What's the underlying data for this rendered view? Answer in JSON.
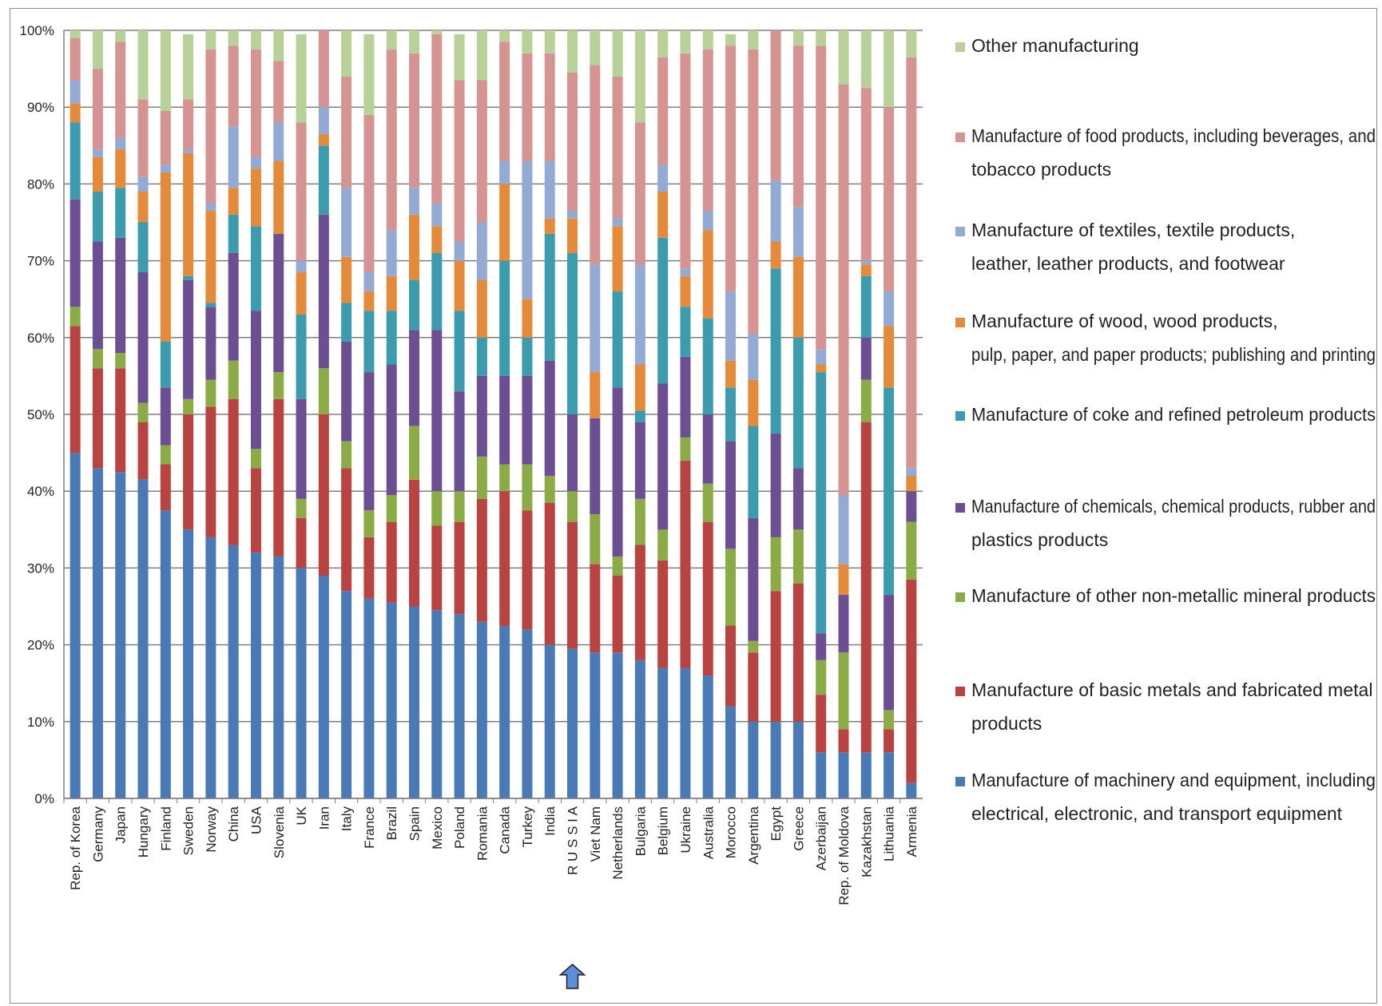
{
  "chart_data": {
    "type": "bar",
    "stacked": true,
    "percent": true,
    "title": "",
    "xlabel": "",
    "ylabel": "",
    "ylim": [
      0,
      100
    ],
    "yticks": [
      "0%",
      "10%",
      "20%",
      "30%",
      "40%",
      "50%",
      "60%",
      "70%",
      "80%",
      "90%",
      "100%"
    ],
    "grid": true,
    "legend_position": "right",
    "categories": [
      "Rep. of Korea",
      "Germany",
      "Japan",
      "Hungary",
      "Finland",
      "Sweden",
      "Norway",
      "China",
      "USA",
      "Slovenia",
      "UK",
      "Iran",
      "Italy",
      "France",
      "Brazil",
      "Spain",
      "Mexico",
      "Poland",
      "Romania",
      "Canada",
      "Turkey",
      "India",
      "R U S S I A",
      "Viet Nam",
      "Netherlands",
      "Bulgaria",
      "Belgium",
      "Ukraine",
      "Australia",
      "Morocco",
      "Argentina",
      "Egypt",
      "Greece",
      "Azerbaijan",
      "Rep. of Moldova",
      "Kazakhstan",
      "Lithuania",
      "Armenia"
    ],
    "highlight_category": "R U S S I A",
    "series": [
      {
        "name": "Manufacture of machinery and equipment, including electrical, electronic, and transport equipment",
        "color": "#4a7ab5",
        "values": [
          45,
          43,
          42.5,
          41.5,
          37.5,
          35,
          34,
          33,
          32,
          31.5,
          30,
          29,
          27,
          26,
          25.5,
          25,
          24.5,
          24,
          23,
          22.5,
          22,
          20,
          19.5,
          19,
          19,
          18,
          17,
          17,
          16,
          12,
          10,
          10,
          10,
          6,
          6,
          6,
          6,
          2
        ]
      },
      {
        "name": "Manufacture of basic metals and fabricated metal products",
        "color": "#b84340",
        "values": [
          16.5,
          13,
          13.5,
          7.5,
          6,
          15,
          17,
          19,
          11,
          20.5,
          6.5,
          21,
          16,
          8,
          10.5,
          16.5,
          11,
          12,
          16,
          17.5,
          15.5,
          18.5,
          16.5,
          11.5,
          10,
          15,
          14,
          27,
          20,
          10.5,
          9,
          17,
          18,
          7.5,
          3,
          43,
          3,
          26.5
        ]
      },
      {
        "name": "Manufacture of other non-metallic mineral products",
        "color": "#8aab46",
        "values": [
          2.5,
          2.5,
          2,
          2.5,
          2.5,
          2,
          3.5,
          5,
          2.5,
          3.5,
          2.5,
          6,
          3.5,
          3.5,
          3.5,
          7,
          4.5,
          4,
          5.5,
          3.5,
          6,
          3.5,
          4,
          6.5,
          2.5,
          6,
          4,
          3,
          5,
          10,
          1.5,
          7,
          7,
          4.5,
          10,
          5.5,
          2.5,
          7.5
        ]
      },
      {
        "name": "Manufacture of chemicals, chemical products, rubber and plastics products",
        "color": "#6c4f93",
        "values": [
          14,
          14,
          15,
          17,
          7.5,
          15.5,
          9.5,
          14,
          18,
          18,
          13,
          20,
          13,
          18,
          17,
          12.5,
          21,
          13,
          10.5,
          11.5,
          11.5,
          15,
          10,
          12.5,
          22,
          10,
          19,
          10.5,
          9,
          14,
          16,
          13.5,
          8,
          3.5,
          7.5,
          5.5,
          15,
          4
        ]
      },
      {
        "name": "Manufacture of coke and refined petroleum products",
        "color": "#3d9bae",
        "values": [
          10,
          6.5,
          6.5,
          6.5,
          6,
          0.5,
          0.5,
          5,
          11,
          0,
          11,
          9,
          5,
          8,
          7,
          6.5,
          10,
          10.5,
          5,
          15,
          5,
          16.5,
          21,
          0,
          12.5,
          1.5,
          19,
          6.5,
          12.5,
          7,
          12,
          21.5,
          17,
          34,
          0,
          8,
          27,
          0
        ]
      },
      {
        "name": "Manufacture of wood, wood products, pulp, paper, and paper products; publishing and printing",
        "color": "#e58a3a",
        "values": [
          2.5,
          4.5,
          5,
          4,
          22,
          16,
          12,
          3.5,
          7.5,
          9.5,
          5.5,
          1.5,
          6,
          2.5,
          4.5,
          8.5,
          3.5,
          6.5,
          7.5,
          10,
          5,
          2,
          4.5,
          6,
          8.5,
          6,
          6,
          4,
          11.5,
          3.5,
          6,
          3.5,
          10.5,
          1,
          4,
          1.5,
          8,
          2
        ]
      },
      {
        "name": "Manufacture of textiles, textile products, leather, leather products, and footwear",
        "color": "#93aad4",
        "values": [
          3,
          1,
          1.5,
          2,
          1,
          0.5,
          1,
          8,
          1.5,
          5,
          1.5,
          3.5,
          9,
          2.5,
          6,
          3.5,
          3,
          2.5,
          7.5,
          3,
          18,
          7.5,
          1,
          14,
          1,
          13,
          3.5,
          1,
          2.5,
          9,
          6,
          8,
          6.5,
          2,
          9,
          0.5,
          4.5,
          1
        ]
      },
      {
        "name": "Manufacture of food products, including beverages, and tobacco products",
        "color": "#d59391",
        "values": [
          5.5,
          10.5,
          12.5,
          10,
          7,
          6.5,
          20,
          10.5,
          14,
          8,
          18,
          10,
          14.5,
          20.5,
          23.5,
          17.5,
          22,
          21,
          18.5,
          15.5,
          14,
          14,
          18,
          26,
          18.5,
          18.5,
          14,
          28,
          21,
          32,
          37,
          20,
          21,
          39.5,
          53.5,
          22.5,
          24,
          53.5
        ]
      },
      {
        "name": "Other manufacturing",
        "color": "#b7d199",
        "values": [
          1,
          5,
          1.5,
          9,
          10.5,
          8.5,
          2.5,
          2,
          2.5,
          4,
          11.5,
          0.5,
          6,
          10.5,
          3,
          3,
          0.5,
          6,
          6.5,
          2,
          3,
          3,
          5.5,
          5,
          7,
          12,
          3.5,
          3,
          2.5,
          1.5,
          3,
          0.5,
          2,
          2.5,
          7,
          7.5,
          10,
          4
        ]
      }
    ],
    "legend_order": [
      "Other manufacturing",
      "Manufacture of food products, including beverages, and tobacco products",
      "Manufacture of textiles, textile products, leather, leather products, and footwear",
      "Manufacture of wood, wood products, pulp, paper, and paper products; publishing and printing",
      "Manufacture of coke and refined petroleum products",
      "Manufacture of chemicals, chemical products, rubber and plastics products",
      "Manufacture of other non-metallic mineral products",
      "Manufacture of basic metals and fabricated metal products",
      "Manufacture of machinery and equipment, including electrical, electronic, and transport equipment"
    ],
    "legend": [
      {
        "lines": [
          "Other manufacturing"
        ],
        "color": "#b7d199"
      },
      {
        "lines": [
          "Manufacture of food products,  including  beverages, and",
          "tobacco products"
        ],
        "color": "#d59391"
      },
      {
        "lines": [
          "Manufacture of textiles,  textile  products,",
          "leather, leather products,  and footwear"
        ],
        "color": "#93aad4"
      },
      {
        "lines": [
          "Manufacture of wood,  wood products,",
          "pulp, paper, and paper products;  publishing  and printing"
        ],
        "color": "#e58a3a"
      },
      {
        "lines": [
          "Manufacture of coke and refined petroleum  products"
        ],
        "color": "#3d9bae"
      },
      {
        "lines": [
          "Manufacture of chemicals, chemical products,  rubber and",
          "plastics products"
        ],
        "color": "#6c4f93"
      },
      {
        "lines": [
          "Manufacture of other non-metallic  mineral products"
        ],
        "color": "#8aab46"
      },
      {
        "lines": [
          "Manufacture of basic metals and fabricated metal",
          "products"
        ],
        "color": "#b84340"
      },
      {
        "lines": [
          "Manufacture of machinery and equipment,  including",
          "electrical,  electronic,  and transport  equipment"
        ],
        "color": "#4a7ab5"
      }
    ]
  },
  "marker": {
    "icon": "up-arrow-icon",
    "color": "#5b8fd6",
    "target": "R U S S I A"
  }
}
